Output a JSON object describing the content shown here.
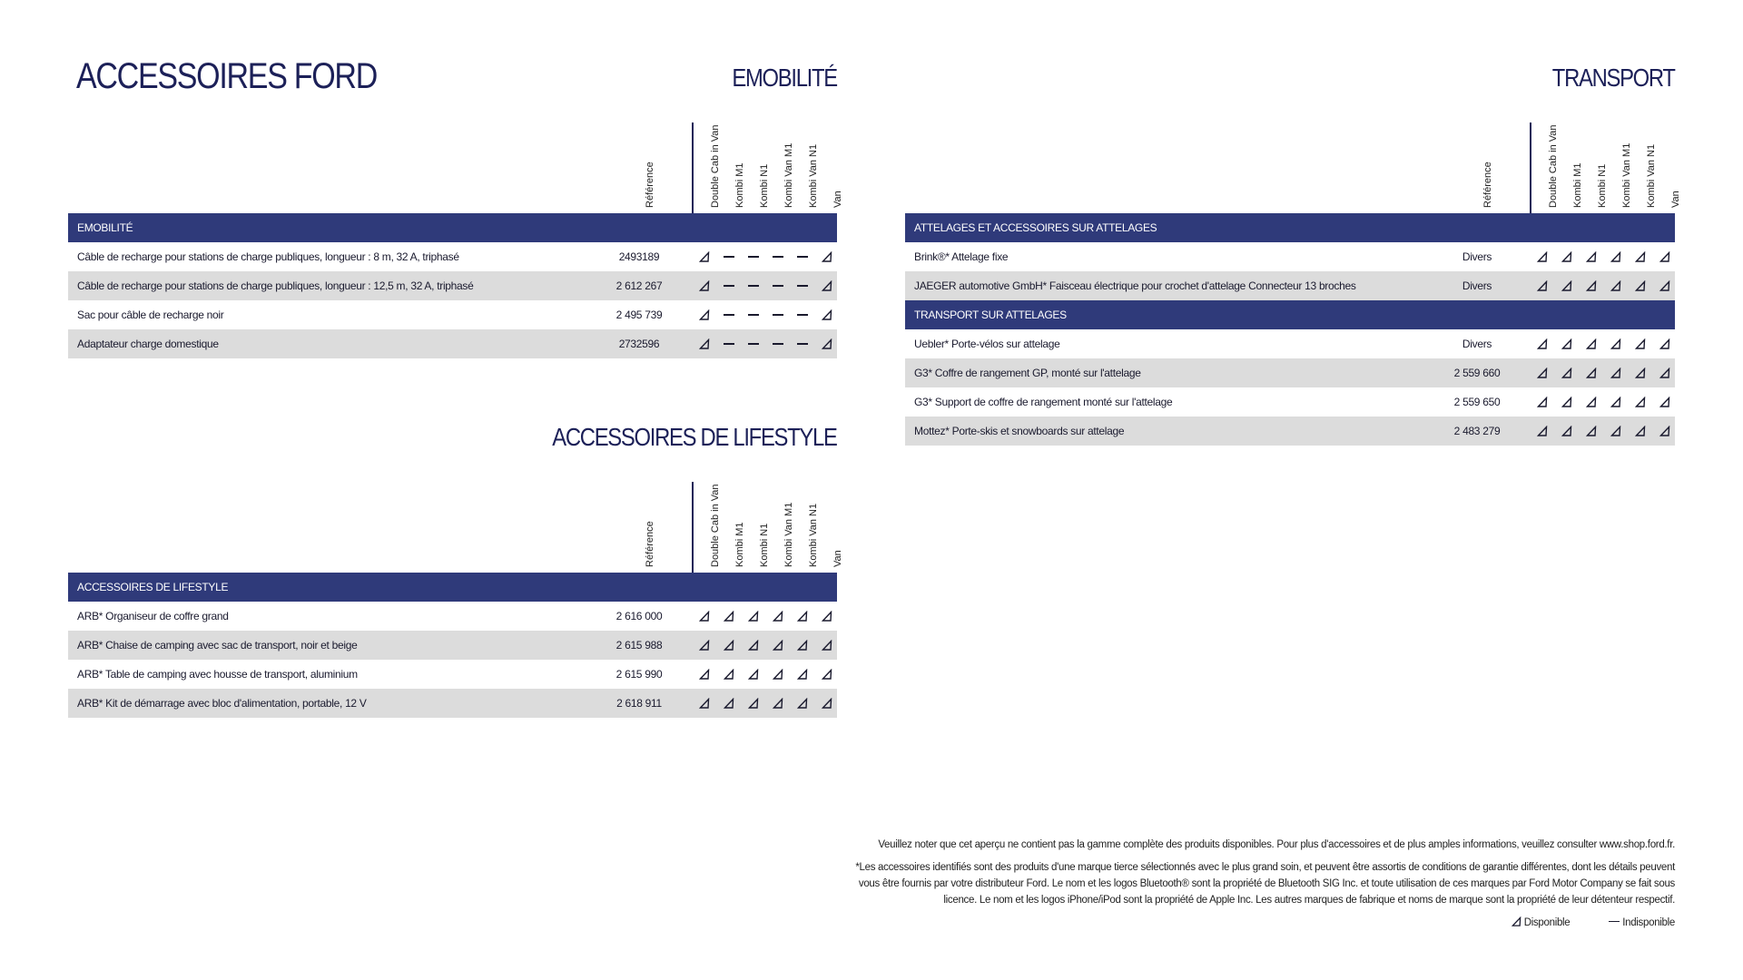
{
  "page_title": "ACCESSOIRES FORD",
  "colors": {
    "accent": "#2f3a7a",
    "title": "#1c2058",
    "alt_row": "#dcdcdc"
  },
  "legend_icons": {
    "available": "right-triangle-icon",
    "unavailable": "dash-icon"
  },
  "columns": [
    "Référence",
    "Double Cab in Van",
    "Kombi M1",
    "Kombi N1",
    "Kombi Van M1",
    "Kombi Van N1",
    "Van"
  ],
  "emobilite": {
    "title": "EMOBILITÉ",
    "groups": [
      {
        "band": "EMOBILITÉ",
        "rows": [
          {
            "label": "Câble de recharge pour stations de charge publiques, longueur : 8 m, 32 A, triphasé",
            "ref": "2493189",
            "avail": [
              1,
              0,
              0,
              0,
              0,
              1
            ]
          },
          {
            "label": "Câble de recharge pour stations de charge publiques, longueur : 12,5 m, 32 A, triphasé",
            "ref": "2 612 267",
            "avail": [
              1,
              0,
              0,
              0,
              0,
              1
            ]
          },
          {
            "label": "Sac pour câble de recharge noir",
            "ref": "2 495 739",
            "avail": [
              1,
              0,
              0,
              0,
              0,
              1
            ]
          },
          {
            "label": "Adaptateur charge domestique",
            "ref": "2732596",
            "avail": [
              1,
              0,
              0,
              0,
              0,
              1
            ]
          }
        ]
      }
    ]
  },
  "lifestyle": {
    "title": "ACCESSOIRES DE LIFESTYLE",
    "groups": [
      {
        "band": "ACCESSOIRES DE LIFESTYLE",
        "rows": [
          {
            "label": "ARB* Organiseur de coffre grand",
            "ref": "2 616 000",
            "avail": [
              1,
              1,
              1,
              1,
              1,
              1
            ]
          },
          {
            "label": "ARB* Chaise de camping avec sac de transport, noir et beige",
            "ref": "2 615 988",
            "avail": [
              1,
              1,
              1,
              1,
              1,
              1
            ]
          },
          {
            "label": "ARB* Table de camping avec housse de transport, aluminium",
            "ref": "2 615 990",
            "avail": [
              1,
              1,
              1,
              1,
              1,
              1
            ]
          },
          {
            "label": "ARB* Kit de démarrage avec bloc d'alimentation, portable, 12 V",
            "ref": "2 618 911",
            "avail": [
              1,
              1,
              1,
              1,
              1,
              1
            ]
          }
        ]
      }
    ]
  },
  "transport": {
    "title": "TRANSPORT",
    "groups": [
      {
        "band": "ATTELAGES ET ACCESSOIRES SUR ATTELAGES",
        "rows": [
          {
            "label": "Brink®* Attelage fixe",
            "ref": "Divers",
            "avail": [
              1,
              1,
              1,
              1,
              1,
              1
            ]
          },
          {
            "label": "JAEGER automotive GmbH* Faisceau électrique pour crochet d'attelage Connecteur 13 broches",
            "ref": "Divers",
            "avail": [
              1,
              1,
              1,
              1,
              1,
              1
            ]
          }
        ]
      },
      {
        "band": "TRANSPORT SUR ATTELAGES",
        "rows": [
          {
            "label": "Uebler* Porte-vélos sur attelage",
            "ref": "Divers",
            "avail": [
              1,
              1,
              1,
              1,
              1,
              1
            ]
          },
          {
            "label": "G3* Coffre de rangement GP, monté sur l'attelage",
            "ref": "2 559 660",
            "avail": [
              1,
              1,
              1,
              1,
              1,
              1
            ]
          },
          {
            "label": "G3* Support de coffre de rangement monté sur l'attelage",
            "ref": "2 559 650",
            "avail": [
              1,
              1,
              1,
              1,
              1,
              1
            ]
          },
          {
            "label": "Mottez* Porte-skis et snowboards sur attelage",
            "ref": "2 483 279",
            "avail": [
              1,
              1,
              1,
              1,
              1,
              1
            ]
          }
        ]
      }
    ]
  },
  "footer": {
    "note": "Veuillez noter que cet aperçu ne contient pas la gamme complète des produits disponibles. Pour plus d'accessoires et de plus amples informations, veuillez consulter www.shop.ford.fr.",
    "disclaimer_1": "*Les accessoires identifiés sont des produits d'une marque tierce sélectionnés avec le plus grand soin, et peuvent être assortis de conditions de garantie différentes, dont les détails peuvent",
    "disclaimer_2": "vous être fournis par votre distributeur Ford. Le nom et les logos Bluetooth® sont la propriété de Bluetooth SIG Inc. et toute utilisation de ces marques par Ford Motor Company se fait sous",
    "disclaimer_3": "licence. Le nom et les logos iPhone/iPod sont la propriété de Apple Inc. Les autres marques de fabrique et noms de marque sont la propriété de leur détenteur respectif.",
    "legend_available": "Disponible",
    "legend_unavailable": "Indisponible"
  }
}
